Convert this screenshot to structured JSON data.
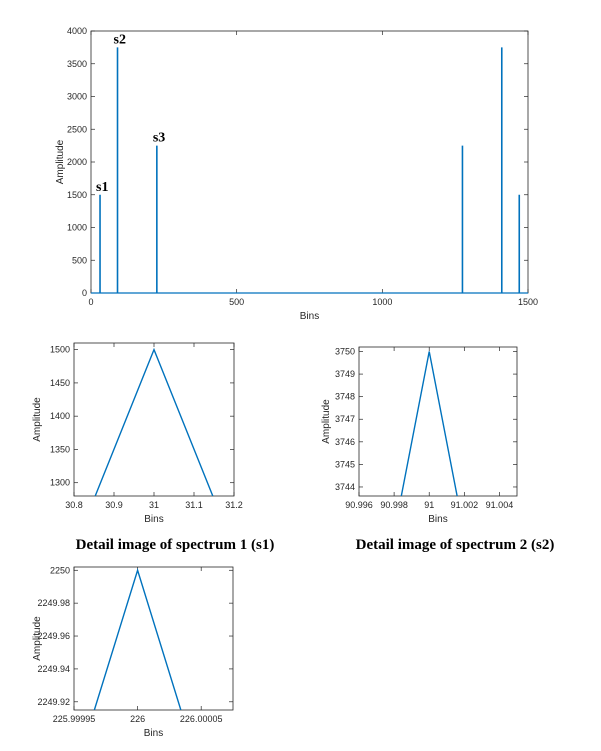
{
  "colors": {
    "series": "#0072BD",
    "axis": "#262626",
    "background": "#ffffff"
  },
  "chart_data": [
    {
      "id": "main",
      "type": "stem",
      "xlabel": "Bins",
      "ylabel": "Amplitude",
      "xlim": [
        0,
        1500
      ],
      "ylim": [
        0,
        4000
      ],
      "xticks": [
        0,
        500,
        1000,
        1500
      ],
      "yticks": [
        0,
        500,
        1000,
        1500,
        2000,
        2500,
        3000,
        3500,
        4000
      ],
      "x": [
        31,
        91,
        226,
        1275,
        1410,
        1470
      ],
      "values": [
        1500,
        3750,
        2250,
        2250,
        3750,
        1500
      ],
      "annotations": [
        {
          "text": "s1",
          "x": 31,
          "y": 1500
        },
        {
          "text": "s2",
          "x": 91,
          "y": 3750
        },
        {
          "text": "s3",
          "x": 226,
          "y": 2250
        }
      ]
    },
    {
      "id": "detail1",
      "type": "line",
      "xlabel": "Bins",
      "ylabel": "Amplitude",
      "caption": "Detail image of spectrum 1 (s1)",
      "xlim": [
        30.8,
        31.2
      ],
      "ylim": [
        1280,
        1510
      ],
      "xticks": [
        30.8,
        30.9,
        31,
        31.1,
        31.2
      ],
      "xticklabels": [
        "30.8",
        "30.9",
        "31",
        "31.1",
        "31.2"
      ],
      "yticks": [
        1300,
        1350,
        1400,
        1450,
        1500
      ],
      "yticklabels": [
        "1300",
        "1350",
        "1400",
        "1450",
        "1500"
      ],
      "x": [
        30.853,
        31,
        31.147
      ],
      "y": [
        1280,
        1500,
        1280
      ]
    },
    {
      "id": "detail2",
      "type": "line",
      "xlabel": "Bins",
      "ylabel": "Amplitude",
      "caption": "Detail image of spectrum 2 (s2)",
      "xlim": [
        90.996,
        91.005
      ],
      "ylim": [
        3743.6,
        3750.2
      ],
      "xticks": [
        90.996,
        90.998,
        91,
        91.002,
        91.004
      ],
      "xticklabels": [
        "90.996",
        "90.998",
        "91",
        "91.002",
        "91.004"
      ],
      "yticks": [
        3744,
        3745,
        3746,
        3747,
        3748,
        3749,
        3750
      ],
      "yticklabels": [
        "3744",
        "3745",
        "3746",
        "3747",
        "3748",
        "3749",
        "3750"
      ],
      "x": [
        90.99841,
        91,
        91.00159
      ],
      "y": [
        3743.6,
        3750,
        3743.6
      ]
    },
    {
      "id": "detail3",
      "type": "line",
      "xlabel": "Bins",
      "ylabel": "Amplitude",
      "xlim": [
        225.99995,
        226.000075
      ],
      "ylim": [
        2249.915,
        2250.002
      ],
      "xticks": [
        225.99995,
        226,
        226.00005
      ],
      "xticklabels": [
        "225.99995",
        "226",
        "226.00005"
      ],
      "yticks": [
        2249.92,
        2249.94,
        2249.96,
        2249.98,
        2250
      ],
      "yticklabels": [
        "2249.92",
        "2249.94",
        "2249.96",
        "2249.98",
        "2250"
      ],
      "x": [
        225.999966,
        226,
        226.000034
      ],
      "y": [
        2249.915,
        2250,
        2249.915
      ]
    }
  ]
}
